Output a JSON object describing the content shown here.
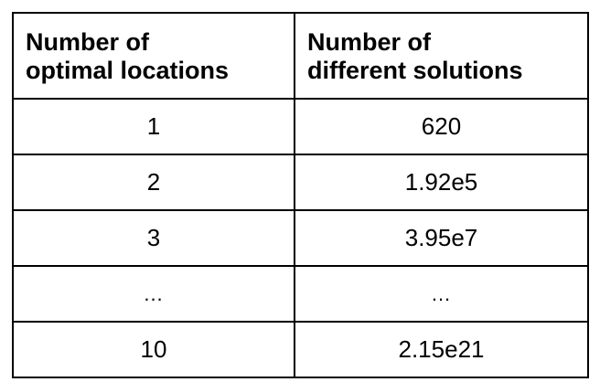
{
  "table": {
    "headers": [
      [
        "Number of",
        "optimal locations"
      ],
      [
        "Number of",
        "different solutions"
      ]
    ],
    "rows": [
      [
        "1",
        "620"
      ],
      [
        "2",
        "1.92e5"
      ],
      [
        "3",
        "3.95e7"
      ],
      [
        "...",
        "..."
      ],
      [
        "10",
        "2.15e21"
      ]
    ]
  }
}
